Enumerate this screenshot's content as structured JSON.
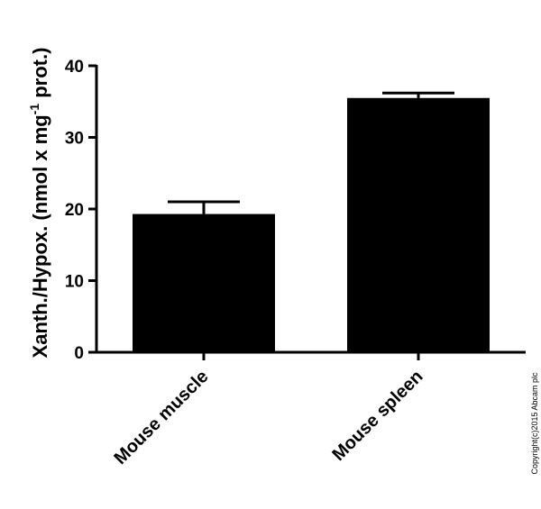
{
  "chart_data": {
    "type": "bar",
    "y_label": [
      "Xanth./Hypox. (nmol x mg",
      "-1",
      " prot.)"
    ],
    "categories": [
      "Mouse muscle",
      "Mouse spleen"
    ],
    "values": [
      19.3,
      35.5
    ],
    "errors": [
      1.7,
      0.7
    ],
    "color": "#000000",
    "ylim": [
      0,
      40
    ],
    "yticks": [
      0,
      10,
      20,
      30,
      40
    ],
    "copyright": "Copyright(c)2015 Abcam plc"
  }
}
